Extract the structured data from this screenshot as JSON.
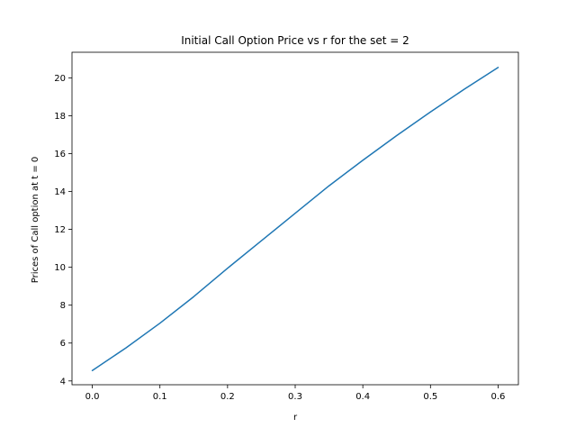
{
  "chart_data": {
    "type": "line",
    "title": "Initial Call Option Price vs r for the set = 2",
    "xlabel": "r",
    "ylabel": "Prices of Call option at t = 0",
    "xlim": [
      -0.03,
      0.63
    ],
    "ylim": [
      3.8,
      21.35
    ],
    "xticks": [
      0.0,
      0.1,
      0.2,
      0.3,
      0.4,
      0.5,
      0.6
    ],
    "xtick_labels": [
      "0.0",
      "0.1",
      "0.2",
      "0.3",
      "0.4",
      "0.5",
      "0.6"
    ],
    "yticks": [
      4,
      6,
      8,
      10,
      12,
      14,
      16,
      18,
      20
    ],
    "ytick_labels": [
      "4",
      "6",
      "8",
      "10",
      "12",
      "14",
      "16",
      "18",
      "20"
    ],
    "grid": false,
    "series": [
      {
        "color": "#1f77b4",
        "x": [
          0.0,
          0.05,
          0.1,
          0.15,
          0.2,
          0.25,
          0.3,
          0.35,
          0.4,
          0.45,
          0.5,
          0.55,
          0.6
        ],
        "y": [
          4.55,
          5.75,
          7.05,
          8.45,
          9.95,
          11.4,
          12.85,
          14.3,
          15.65,
          16.95,
          18.2,
          19.4,
          20.55
        ]
      }
    ]
  }
}
